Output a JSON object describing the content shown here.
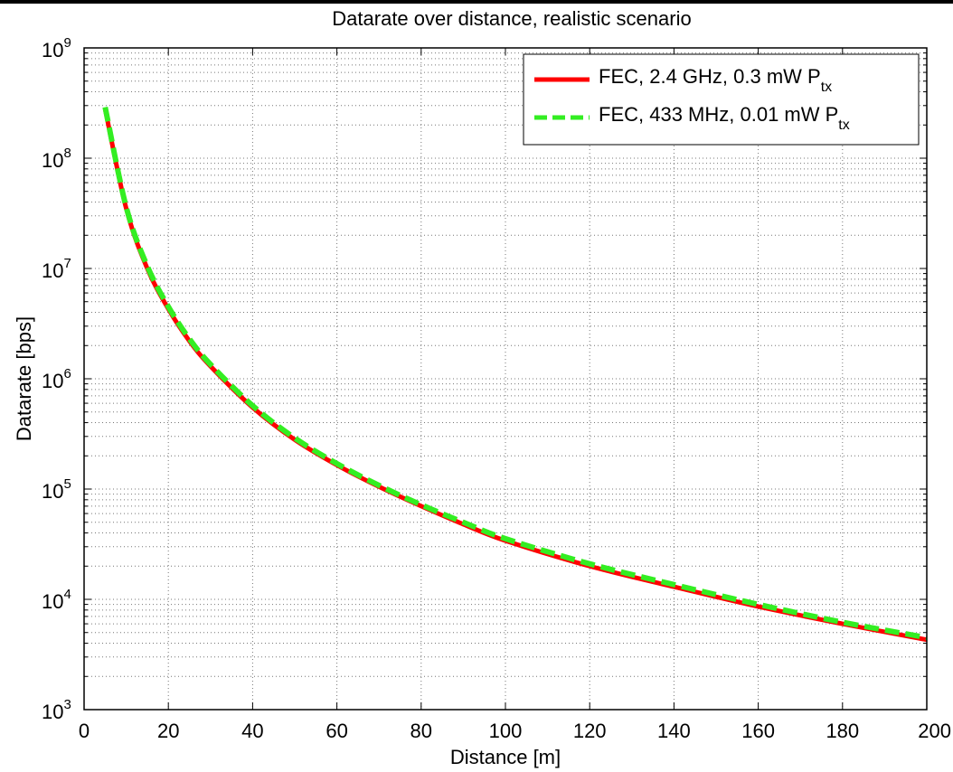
{
  "chart_data": {
    "type": "line",
    "title": "Datarate over distance, realistic scenario",
    "xlabel": "Distance [m]",
    "ylabel": "Datarate [bps]",
    "xlim": [
      0,
      200
    ],
    "ylim": [
      1000,
      1000000000
    ],
    "yscale": "log",
    "grid": true,
    "legend_position": "top-right",
    "xticks": [
      "0",
      "20",
      "40",
      "60",
      "80",
      "100",
      "120",
      "140",
      "160",
      "180",
      "200"
    ],
    "xtick_values": [
      0,
      20,
      40,
      60,
      80,
      100,
      120,
      140,
      160,
      180,
      200
    ],
    "yticks": [
      {
        "base": "10",
        "exp": "3",
        "value": 1000
      },
      {
        "base": "10",
        "exp": "4",
        "value": 10000
      },
      {
        "base": "10",
        "exp": "5",
        "value": 100000
      },
      {
        "base": "10",
        "exp": "6",
        "value": 1000000
      },
      {
        "base": "10",
        "exp": "7",
        "value": 10000000
      },
      {
        "base": "10",
        "exp": "8",
        "value": 100000000
      },
      {
        "base": "10",
        "exp": "9",
        "value": 1000000000
      }
    ],
    "x": [
      5,
      10,
      15,
      20,
      25,
      30,
      40,
      50,
      60,
      70,
      80,
      90,
      100,
      120,
      140,
      160,
      180,
      200
    ],
    "series": [
      {
        "name": "FEC, 2.4 GHz, 0.3 mW P",
        "name_sub": "tx",
        "color": "#ff0000",
        "dash": "solid",
        "values": [
          280000000,
          35000000,
          10000000,
          4300000,
          2200000,
          1300000,
          550000,
          280000,
          165000,
          105000,
          70000,
          48000,
          34000,
          20000,
          13000,
          8600,
          6000,
          4300
        ]
      },
      {
        "name": "FEC, 433 MHz, 0.01 mW P",
        "name_sub": "tx",
        "color": "#33ee22",
        "dash": "dashed",
        "values": [
          290000000,
          36000000,
          10500000,
          4500000,
          2300000,
          1350000,
          570000,
          290000,
          170000,
          108000,
          72000,
          50000,
          35500,
          21000,
          13600,
          9000,
          6200,
          4500
        ]
      }
    ]
  }
}
